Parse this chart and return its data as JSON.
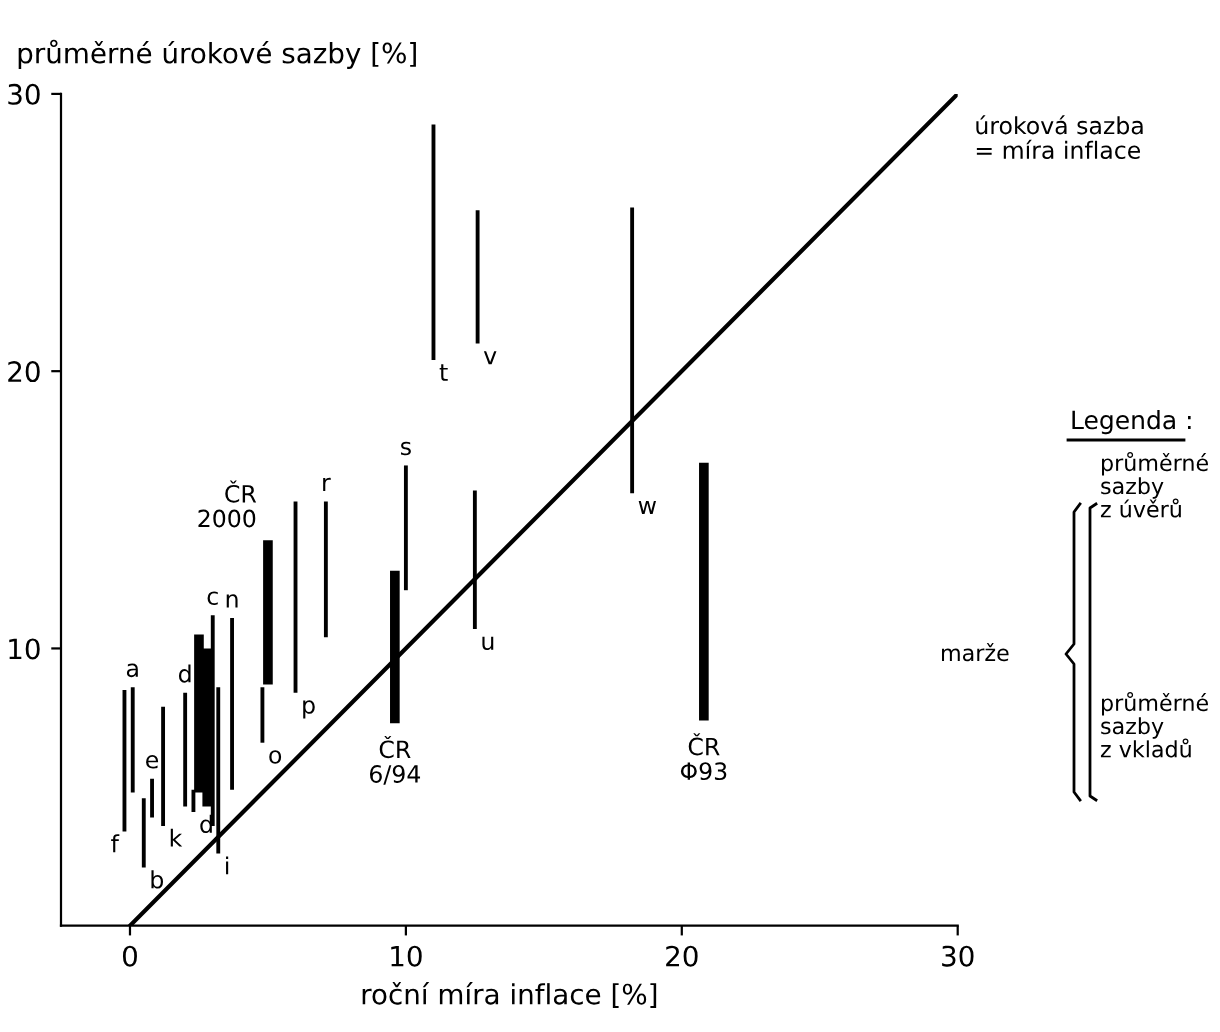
{
  "chart_data": {
    "type": "bar",
    "xlabel": "roční míra inflace [%]",
    "ylabel": "průměrné úrokové sazby [%]",
    "series": [
      {
        "color": "#000000",
        "x": [
          -0.2,
          0.1,
          0.5,
          0.8,
          1.2,
          2.0,
          2.3,
          3.0,
          3.2,
          3.7,
          4.8,
          6.0,
          7.1,
          10.0,
          11.0,
          12.5,
          12.6,
          18.2
        ],
        "base": [
          3.4,
          4.8,
          2.1,
          3.9,
          3.6,
          4.3,
          4.1,
          3.6,
          2.6,
          4.9,
          6.6,
          8.4,
          10.4,
          12.1,
          20.4,
          10.7,
          21.0,
          15.6
        ],
        "values": [
          5.1,
          3.8,
          2.5,
          1.4,
          4.3,
          4.1,
          0.8,
          7.6,
          6.0,
          6.2,
          2.0,
          6.9,
          4.9,
          4.5,
          8.5,
          5.0,
          4.8,
          10.3
        ]
      },
      {
        "color": "#000000",
        "x": [
          2.5,
          2.8,
          5.0,
          9.6,
          20.8
        ],
        "base": [
          4.8,
          4.3,
          8.7,
          7.3,
          7.4
        ],
        "values": [
          5.7,
          5.7,
          5.2,
          5.5,
          9.3
        ]
      },
      {
        "type": "line",
        "color": "#000000",
        "x": [
          0,
          30
        ],
        "values": [
          0,
          30
        ]
      }
    ],
    "xlim": [
      -2.5,
      30
    ],
    "ylim": [
      0,
      30
    ],
    "xticks": [
      0,
      10,
      20,
      30
    ],
    "yticks": [
      10,
      20,
      30
    ],
    "grid": false,
    "legend": false,
    "annotations": [
      {
        "text": "a",
        "x": 0.1,
        "y": 8.6
      },
      {
        "text": "f",
        "x": -0.2,
        "y": 3.4
      },
      {
        "text": "b",
        "x": 0.5,
        "y": 2.1
      },
      {
        "text": "e",
        "x": 0.8,
        "y": 5.3
      },
      {
        "text": "k",
        "x": 1.2,
        "y": 3.6
      },
      {
        "text": "d",
        "x": 2.0,
        "y": 8.4
      },
      {
        "text": "d",
        "x": 2.3,
        "y": 4.1
      },
      {
        "text": "c",
        "x": 3.0,
        "y": 11.2
      },
      {
        "text": "i",
        "x": 3.2,
        "y": 2.6
      },
      {
        "text": "n",
        "x": 3.7,
        "y": 11.1
      },
      {
        "text": "o",
        "x": 4.8,
        "y": 6.6
      },
      {
        "text": "p",
        "x": 6.0,
        "y": 8.4
      },
      {
        "text": "r",
        "x": 7.1,
        "y": 15.3
      },
      {
        "text": "s",
        "x": 10.0,
        "y": 16.6
      },
      {
        "text": "t",
        "x": 11.0,
        "y": 20.4
      },
      {
        "text": "v",
        "x": 12.6,
        "y": 21.0
      },
      {
        "text": "w",
        "x": 18.2,
        "y": 15.6
      },
      {
        "text": "u",
        "x": 12.5,
        "y": 10.7
      },
      {
        "text": "ČR\n2000",
        "x": 5.0,
        "y": 13.9
      },
      {
        "text": "ČR\n6/94",
        "x": 9.6,
        "y": 7.3
      },
      {
        "text": "ČR\nΦ93",
        "x": 20.8,
        "y": 7.4
      },
      {
        "text": "úroková sazba\n= míra inflace",
        "x": 30,
        "y": 30
      },
      "Legenda :",
      "průměrné\nsazby\nz úvěrů",
      "marže",
      "průměrné\nsazby\nz vkladů"
    ]
  }
}
